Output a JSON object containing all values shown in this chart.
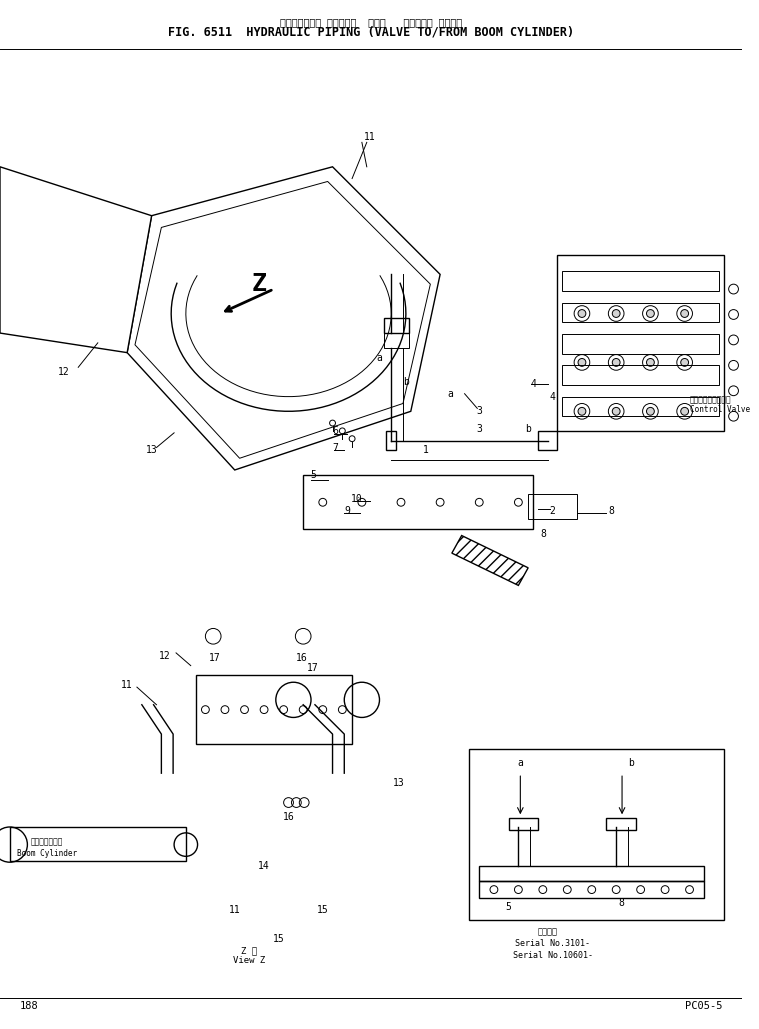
{
  "title_jp": "ハイドロリック パイピング  スカス   ト・ブーム シリンダ",
  "title_en": "FIG. 6511  HYDRAULIC PIPING (VALVE TO/FROM BOOM CYLINDER)",
  "page_left": "188",
  "page_right": "PC05-5",
  "background": "#ffffff",
  "line_color": "#000000",
  "text_color": "#000000",
  "control_valve_jp": "コントロールバルブ",
  "control_valve_en": "Control Valve",
  "boom_cylinder_jp": "ブームシリンダ",
  "boom_cylinder_en": "Boom Cylinder",
  "view_z_jp": "Z 視",
  "view_z_en": "View Z",
  "serial_note": "適用号機",
  "serial_1": "Serial No.3101-",
  "serial_2": "Serial No.10601-"
}
